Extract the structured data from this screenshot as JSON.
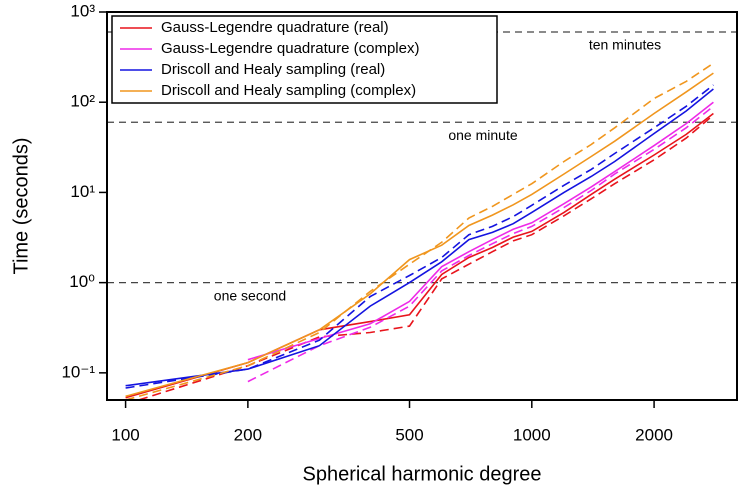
{
  "chart_data": {
    "type": "line",
    "xlabel": "Spherical harmonic degree",
    "ylabel": "Time (seconds)",
    "xscale": "log",
    "yscale": "log",
    "xlim": [
      90,
      3200
    ],
    "ylim": [
      0.05,
      1000
    ],
    "xticks": [
      100,
      200,
      500,
      1000,
      2000
    ],
    "yticks": [
      {
        "value": 0.1,
        "label": "10⁻¹"
      },
      {
        "value": 1,
        "label": "10⁰"
      },
      {
        "value": 10,
        "label": "10¹"
      },
      {
        "value": 100,
        "label": "10²"
      },
      {
        "value": 1000,
        "label": "10³"
      }
    ],
    "legend_position": "upper-left",
    "reference_lines": [
      {
        "value": 1,
        "label": "one second"
      },
      {
        "value": 60,
        "label": "one minute"
      },
      {
        "value": 600,
        "label": "ten minutes"
      }
    ],
    "x": [
      100,
      200,
      300,
      400,
      500,
      600,
      700,
      800,
      900,
      1000,
      1200,
      1400,
      1600,
      2000,
      2400,
      2800
    ],
    "series": [
      {
        "name": "Gauss-Legendre quadrature (real)",
        "color": "#e8141c",
        "values": [
          0.053,
          0.13,
          0.3,
          0.37,
          0.44,
          1.23,
          1.9,
          2.45,
          3.2,
          3.7,
          6,
          9.5,
          14,
          26,
          44,
          75
        ],
        "dashed_values": [
          0.045,
          0.12,
          0.25,
          0.28,
          0.33,
          1.1,
          1.6,
          2.2,
          2.9,
          3.4,
          5.5,
          8.5,
          12.5,
          23,
          40,
          72
        ]
      },
      {
        "name": "Gauss-Legendre quadrature (complex)",
        "color": "#ee2ae8",
        "values": [
          null,
          0.14,
          0.24,
          0.35,
          0.62,
          1.5,
          2.2,
          3.0,
          3.9,
          4.6,
          7.5,
          11.5,
          17,
          33,
          58,
          100
        ],
        "dashed_values": [
          null,
          0.08,
          0.2,
          0.32,
          0.55,
          1.35,
          2.0,
          2.7,
          3.5,
          4.2,
          6.8,
          10.5,
          16,
          30,
          52,
          90
        ]
      },
      {
        "name": "Driscoll and Healy sampling (real)",
        "color": "#1414e0",
        "values": [
          0.072,
          0.11,
          0.2,
          0.55,
          1.0,
          1.7,
          3.0,
          3.6,
          4.5,
          6.0,
          10,
          15,
          22,
          45,
          80,
          140
        ],
        "dashed_values": [
          0.068,
          0.11,
          0.23,
          0.7,
          1.2,
          1.9,
          3.4,
          4.2,
          5.4,
          7.2,
          12,
          18,
          27,
          52,
          90,
          155
        ]
      },
      {
        "name": "Driscoll and Healy sampling (complex)",
        "color": "#f0961e",
        "values": [
          0.055,
          0.13,
          0.3,
          0.75,
          1.8,
          2.6,
          4.3,
          5.6,
          7.3,
          9.5,
          16,
          25,
          37,
          75,
          130,
          210
        ],
        "dashed_values": [
          0.05,
          0.12,
          0.28,
          0.8,
          1.6,
          2.8,
          5.2,
          7.0,
          9.5,
          12.5,
          22,
          34,
          52,
          110,
          170,
          270
        ]
      }
    ]
  }
}
